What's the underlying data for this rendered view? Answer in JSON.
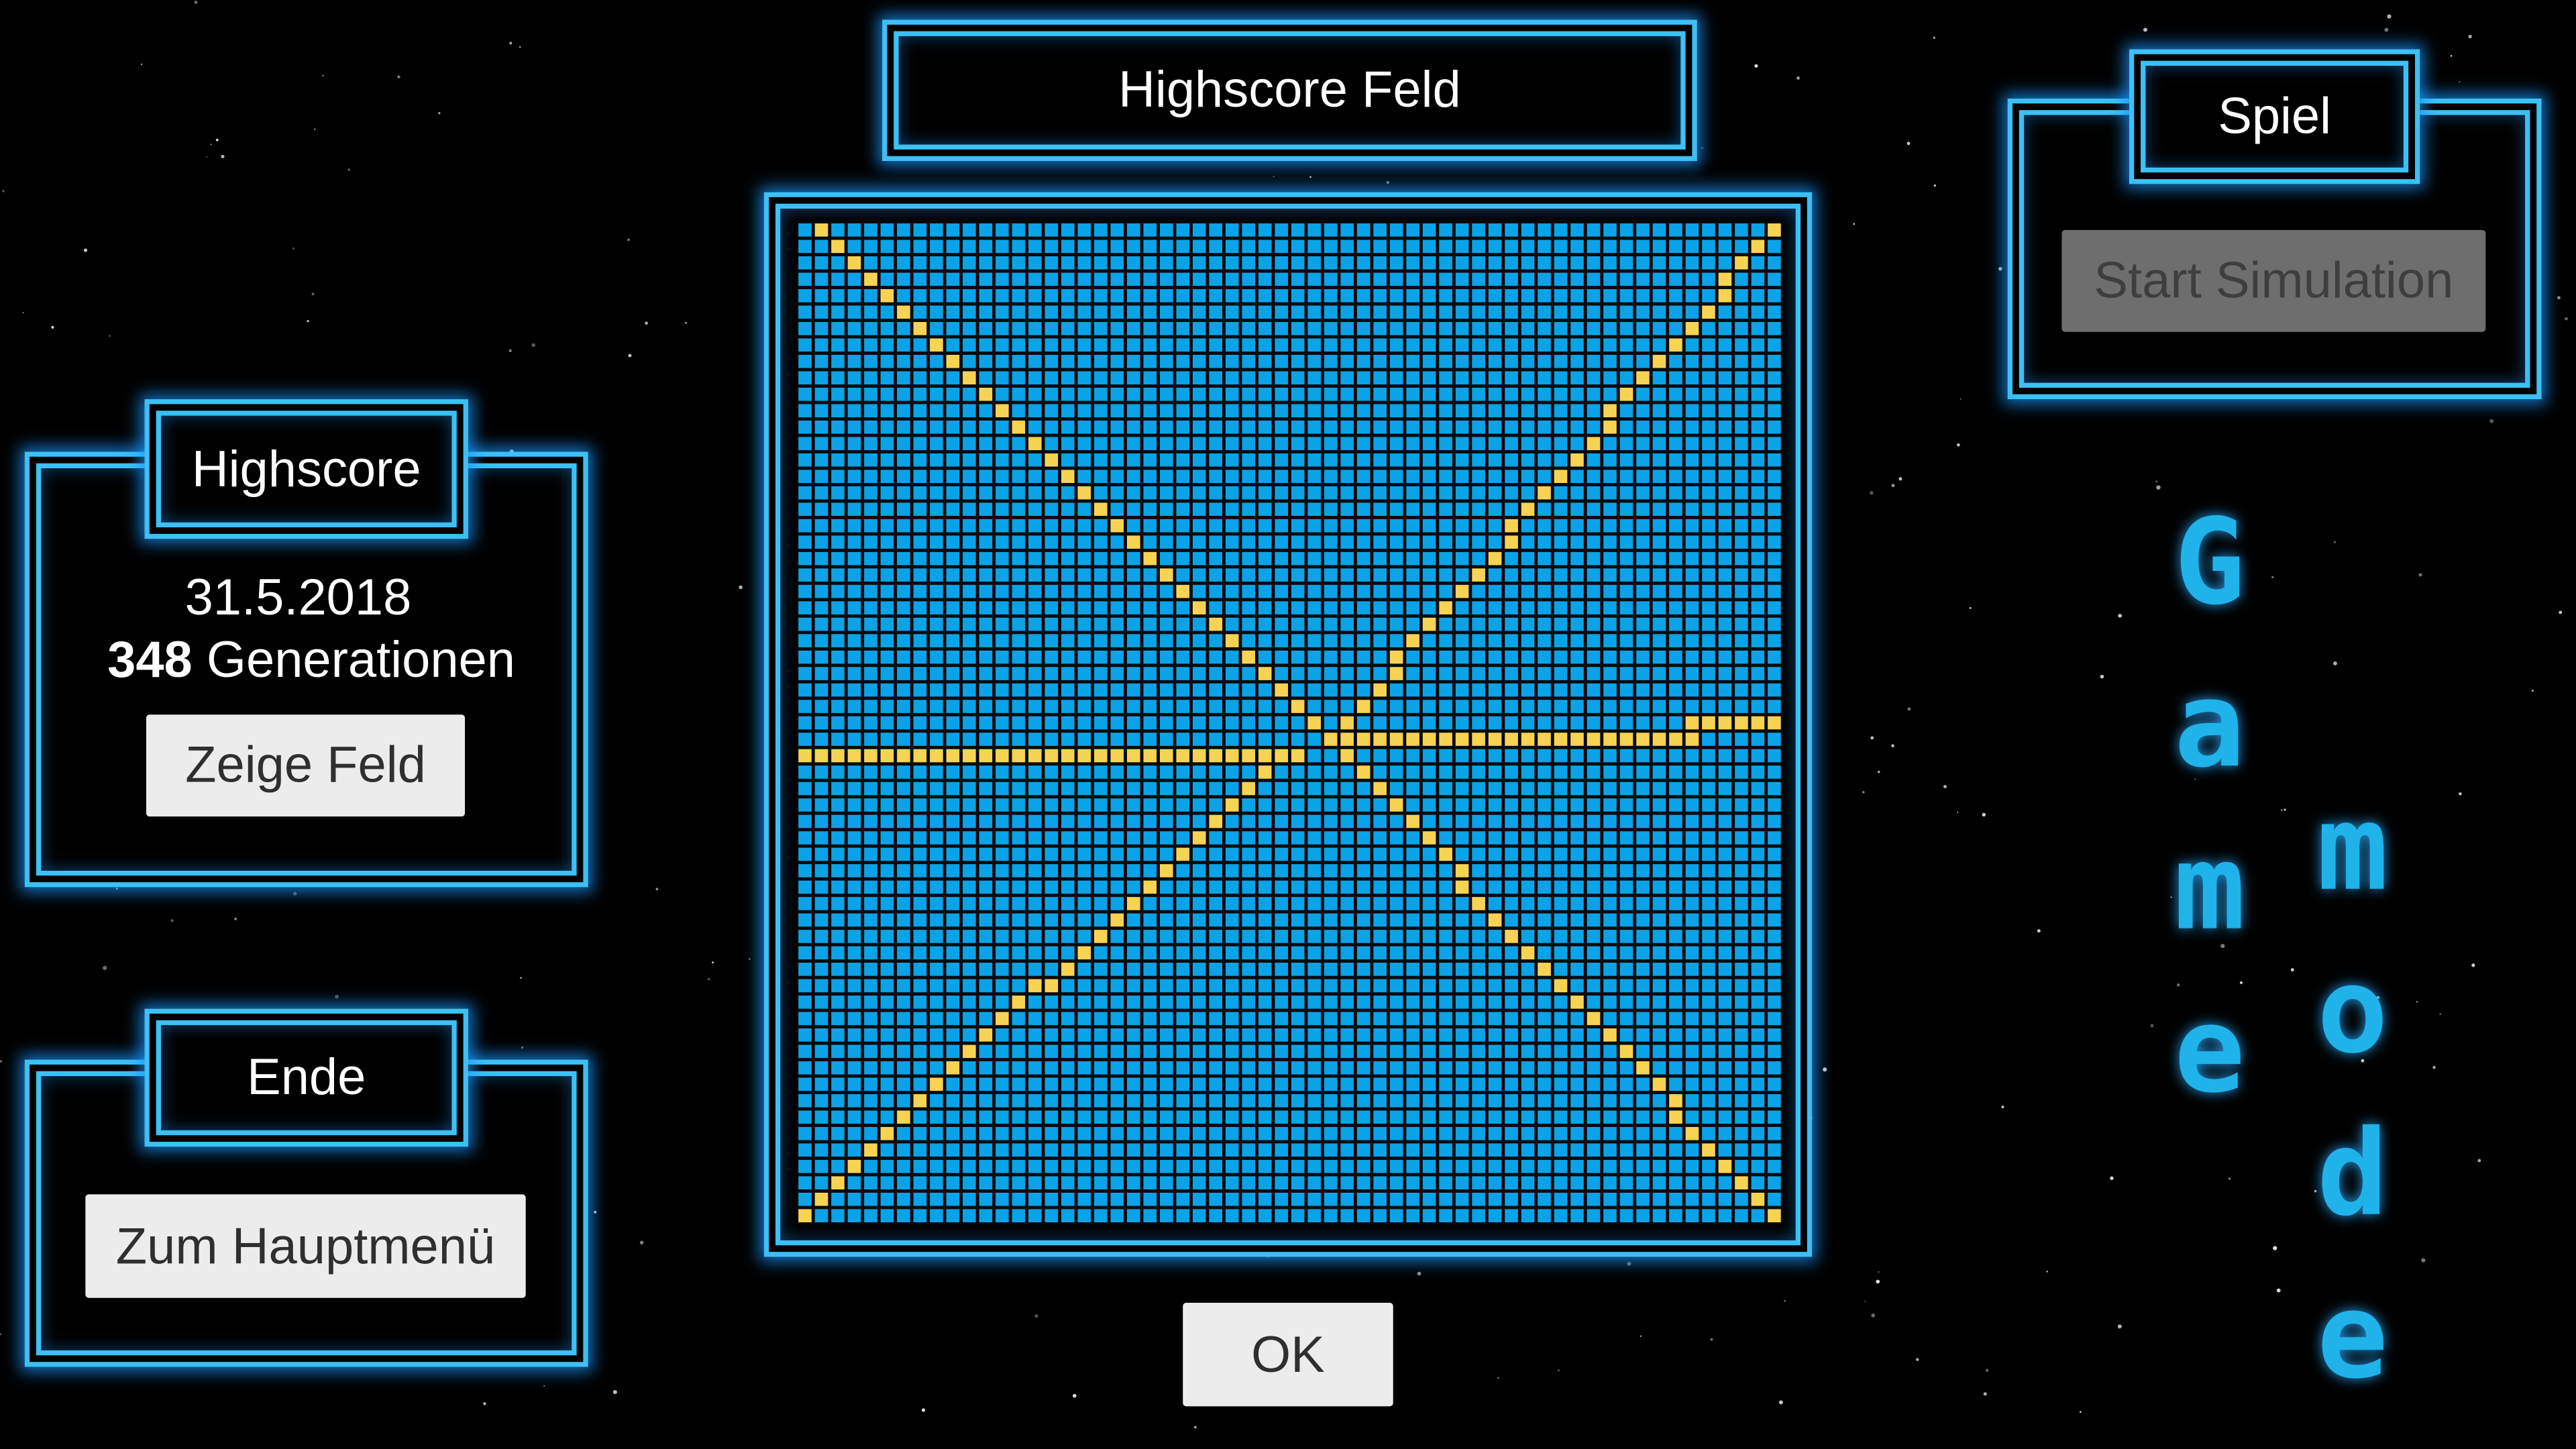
{
  "title": "Highscore Feld",
  "game_panel": {
    "title": "Spiel",
    "button": "Start Simulation"
  },
  "highscore_panel": {
    "title": "Highscore",
    "date": "31.5.2018",
    "generations": 348,
    "generations_label": "Generationen",
    "button": "Zeige Feld"
  },
  "end_panel": {
    "title": "Ende",
    "button": "Zum Hauptmenü"
  },
  "ok_button": "OK",
  "logo": {
    "column1": "Game",
    "column2": "mode"
  }
}
